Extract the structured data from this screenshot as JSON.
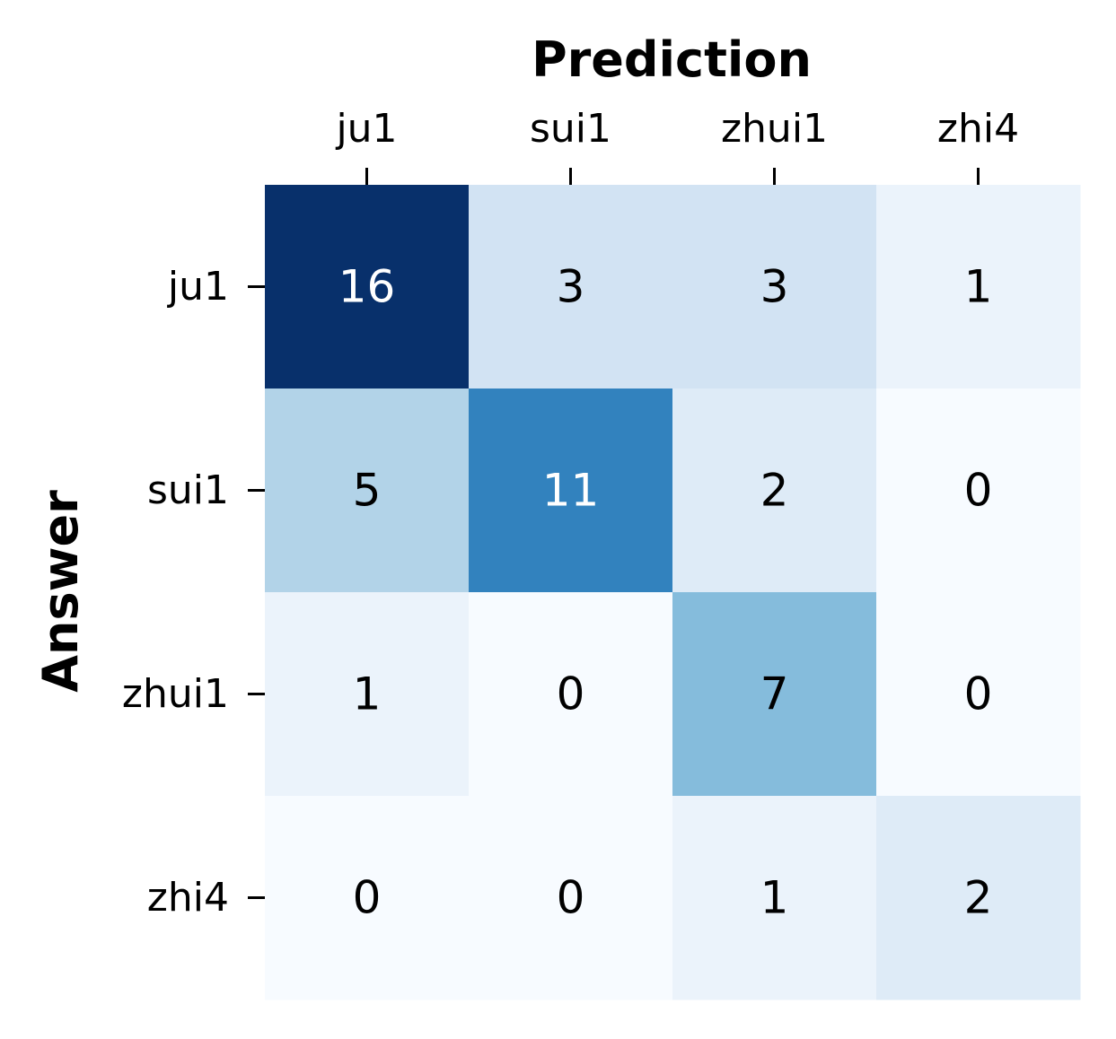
{
  "chart_data": {
    "type": "heatmap",
    "title": "",
    "xlabel": "Prediction",
    "ylabel": "Answer",
    "x_categories": [
      "ju1",
      "sui1",
      "zhui1",
      "zhi4"
    ],
    "y_categories": [
      "ju1",
      "sui1",
      "zhui1",
      "zhi4"
    ],
    "values": [
      [
        16,
        3,
        3,
        1
      ],
      [
        5,
        11,
        2,
        0
      ],
      [
        1,
        0,
        7,
        0
      ],
      [
        0,
        0,
        1,
        2
      ]
    ],
    "color_range": [
      0,
      16
    ],
    "colormap": "Blues",
    "x_axis_position": "top",
    "colorbar": false,
    "grid": false,
    "text_color_dark": "#000000",
    "text_color_light": "#ffffff"
  }
}
